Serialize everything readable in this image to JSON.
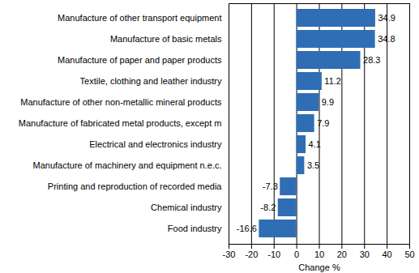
{
  "chart_data": {
    "type": "bar",
    "orientation": "horizontal",
    "x_label": "Change %",
    "categories": [
      "Manufacture of other transport equipment",
      "Manufacture of basic metals",
      "Manufacture of paper and paper products",
      "Textile, clothing and leather industry",
      "Manufacture of other non-metallic mineral products",
      "Manufacture of fabricated metal products, except m",
      "Electrical and electronics industry",
      "Manufacture of machinery and equipment n.e.c.",
      "Printing and reproduction of recorded media",
      "Chemical industry",
      "Food industry"
    ],
    "values": [
      34.9,
      34.8,
      28.3,
      11.2,
      9.9,
      7.9,
      4.1,
      3.5,
      -7.3,
      -8.2,
      -16.6
    ],
    "color": "#2f6db5",
    "xlim": [
      -30,
      50
    ],
    "xticks": [
      -30,
      -20,
      -10,
      0,
      10,
      20,
      30,
      40,
      50
    ],
    "grid": true,
    "data_labels": true
  }
}
